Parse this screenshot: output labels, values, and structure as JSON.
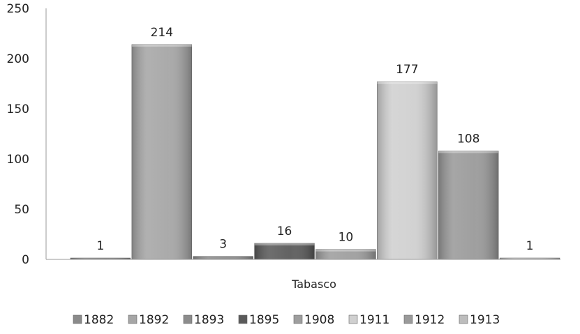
{
  "chart_data": {
    "type": "bar",
    "categories": [
      "Tabasco"
    ],
    "series": [
      {
        "name": "1882",
        "values": [
          1
        ],
        "color": "#8a8a8a"
      },
      {
        "name": "1892",
        "values": [
          214
        ],
        "color": "#a6a6a6"
      },
      {
        "name": "1893",
        "values": [
          3
        ],
        "color": "#8c8c8c"
      },
      {
        "name": "1895",
        "values": [
          16
        ],
        "color": "#5a5a5a"
      },
      {
        "name": "1908",
        "values": [
          10
        ],
        "color": "#9e9e9e"
      },
      {
        "name": "1911",
        "values": [
          177
        ],
        "color": "#d0d0d0"
      },
      {
        "name": "1912",
        "values": [
          108
        ],
        "color": "#9a9a9a"
      },
      {
        "name": "1913",
        "values": [
          1
        ],
        "color": "#bdbdbd"
      }
    ],
    "title": "",
    "xlabel": "",
    "ylabel": "",
    "ylim": [
      0,
      250
    ],
    "yticks": [
      "0",
      "50",
      "100",
      "150",
      "200",
      "250"
    ],
    "grid": false,
    "legend_position": "bottom",
    "data_labels": [
      "1",
      "214",
      "3",
      "16",
      "10",
      "177",
      "108",
      "1"
    ]
  }
}
